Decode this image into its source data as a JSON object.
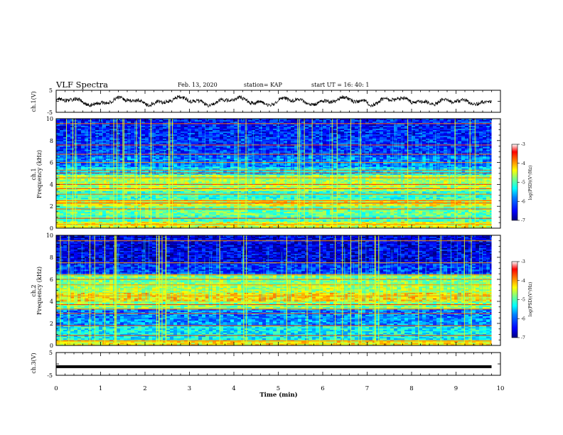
{
  "header": {
    "title": "VLF Spectra",
    "date": "Feb. 13, 2020",
    "station": "station= KAP",
    "start": "start UT =   16: 40: 1"
  },
  "colorbar": {
    "label": "log(PSD)(V²/Hz)",
    "ticks": [
      "-3",
      "-4",
      "-5",
      "-6",
      "-7"
    ],
    "range": [
      -7,
      -3
    ],
    "colormap": [
      "#000080",
      "#0000ff",
      "#0080ff",
      "#00ffff",
      "#80ff80",
      "#ffff00",
      "#ff8000",
      "#ff0000",
      "#ffffff"
    ]
  },
  "chart_data": [
    {
      "type": "line",
      "name": "ch1-waveform",
      "ylabel": "ch.1(V)",
      "ylim": [
        -5,
        5
      ],
      "yticks": [
        "5",
        "-5"
      ],
      "xlim": [
        0,
        10
      ],
      "x_end": 9.8,
      "trace_color": "#000000"
    },
    {
      "type": "heatmap",
      "name": "ch1-spectrogram",
      "ylabel_top": "ch.1",
      "ylabel": "Frequency (kHz)",
      "ylim": [
        0,
        10
      ],
      "yticks": [
        "0",
        "2",
        "4",
        "6",
        "8",
        "10"
      ],
      "xlim": [
        0,
        10
      ],
      "x_end": 9.8,
      "bands": [
        {
          "f": [
            0,
            0.6
          ],
          "level": -4.6
        },
        {
          "f": [
            0.6,
            1.2
          ],
          "level": -5.2
        },
        {
          "f": [
            1.2,
            2.0
          ],
          "level": -5.1
        },
        {
          "f": [
            2.0,
            2.6
          ],
          "level": -4.6
        },
        {
          "f": [
            2.6,
            3.4
          ],
          "level": -5.3
        },
        {
          "f": [
            3.4,
            4.9
          ],
          "level": -4.8
        },
        {
          "f": [
            4.9,
            5.6
          ],
          "level": -5.6
        },
        {
          "f": [
            5.6,
            6.6
          ],
          "level": -6.0
        },
        {
          "f": [
            6.6,
            8.2
          ],
          "level": -6.3
        },
        {
          "f": [
            8.2,
            10
          ],
          "level": -6.4
        }
      ],
      "lines_khz": [
        0.35,
        0.9,
        1.75,
        2.3,
        2.5,
        3.1,
        3.6,
        4.0,
        4.6,
        5.05,
        5.3,
        6.0,
        6.75,
        7.6,
        9.55
      ]
    },
    {
      "type": "heatmap",
      "name": "ch2-spectrogram",
      "ylabel_top": "ch.2",
      "ylabel": "Frequency (kHz)",
      "ylim": [
        0,
        10
      ],
      "yticks": [
        "0",
        "2",
        "4",
        "6",
        "8",
        "10"
      ],
      "xlim": [
        0,
        10
      ],
      "x_end": 9.8,
      "bands": [
        {
          "f": [
            0,
            0.5
          ],
          "level": -4.5
        },
        {
          "f": [
            0.5,
            1.8
          ],
          "level": -5.5
        },
        {
          "f": [
            1.8,
            2.5
          ],
          "level": -5.9
        },
        {
          "f": [
            2.5,
            3.3
          ],
          "level": -6.0
        },
        {
          "f": [
            3.3,
            4.0
          ],
          "level": -5.0
        },
        {
          "f": [
            4.0,
            4.8
          ],
          "level": -4.4
        },
        {
          "f": [
            4.8,
            5.6
          ],
          "level": -4.8
        },
        {
          "f": [
            5.6,
            6.5
          ],
          "level": -5.0
        },
        {
          "f": [
            6.5,
            7.4
          ],
          "level": -6.3
        },
        {
          "f": [
            7.4,
            10
          ],
          "level": -6.6
        }
      ],
      "lines_khz": [
        0.4,
        0.9,
        1.8,
        2.9,
        3.3,
        3.7,
        4.5,
        5.5,
        6.0,
        6.4,
        7.5,
        9.5
      ]
    },
    {
      "type": "line",
      "name": "ch3-waveform",
      "ylabel": "ch.3(V)",
      "ylim": [
        -5,
        5
      ],
      "yticks": [
        "5",
        "-5"
      ],
      "xlim": [
        0,
        10
      ],
      "x_end": 9.8,
      "constant_value": -1.2,
      "trace_color": "#000000"
    }
  ],
  "x_axis": {
    "label": "Time (min)",
    "ticks": [
      "0",
      "1",
      "2",
      "3",
      "4",
      "5",
      "6",
      "7",
      "8",
      "9",
      "10"
    ]
  }
}
